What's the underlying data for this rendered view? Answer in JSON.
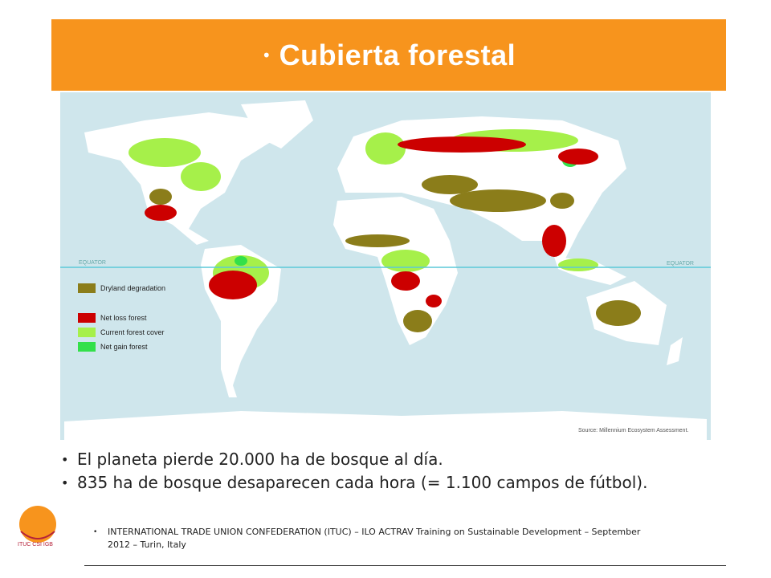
{
  "header": {
    "title": "Cubierta forestal"
  },
  "map": {
    "equator_labels": [
      "EQUATOR",
      "EQUATOR"
    ],
    "legend": [
      "Dryland degradation",
      "Net loss forest",
      "Current forest cover",
      "Net gain forest"
    ],
    "source": "Source: Millennium Ecosystem Assessment."
  },
  "bullets": [
    "El planeta pierde 20.000 ha de bosque al día.",
    "835 ha de bosque desaparecen cada hora (= 1.100 campos de fútbol)."
  ],
  "footer": "INTERNATIONAL TRADE UNION CONFEDERATION (ITUC) – ILO ACTRAV Training on Sustainable Development – September 2012 – Turin, Italy",
  "logo": {
    "text": "ITUC CSI IGB"
  }
}
